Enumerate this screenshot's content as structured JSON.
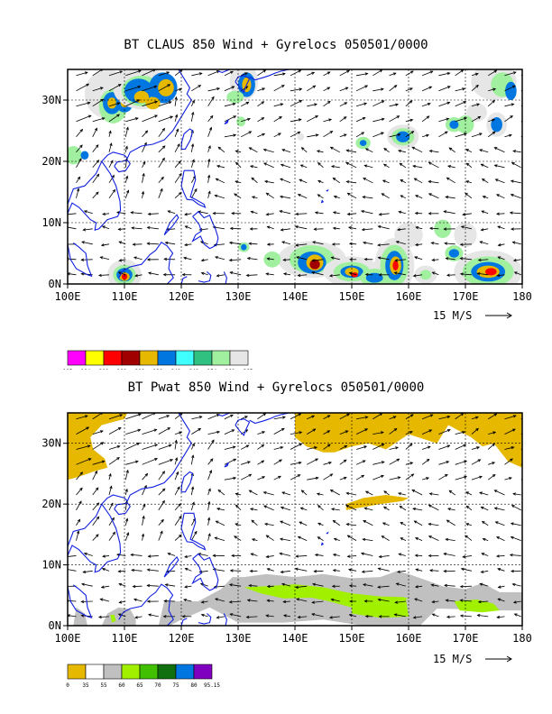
{
  "panels": [
    {
      "id": "claus",
      "title": "BT CLAUS 850 Wind + Gyrelocs 050501/0000",
      "x_ticks": [
        "100E",
        "110E",
        "120E",
        "130E",
        "140E",
        "150E",
        "160E",
        "170E",
        "180"
      ],
      "y_ticks": [
        "0N",
        "10N",
        "20N",
        "30N"
      ],
      "vector_ref": "15 M/S",
      "colorbar": {
        "colors": [
          "#ff00ff",
          "#ffff00",
          "#ff0000",
          "#a00000",
          "#e6b800",
          "#0077e0",
          "#40ffff",
          "#30c080",
          "#a0f0a0",
          "#e6e6e6"
        ],
        "labels": [
          "185",
          "194",
          "200",
          "208",
          "218",
          "230",
          "242",
          "248",
          "254",
          "260",
          "265"
        ]
      }
    },
    {
      "id": "pwat",
      "title": "BT Pwat 850 Wind + Gyrelocs 050501/0000",
      "x_ticks": [
        "100E",
        "110E",
        "120E",
        "130E",
        "140E",
        "150E",
        "160E",
        "170E",
        "180"
      ],
      "y_ticks": [
        "0N",
        "10N",
        "20N",
        "30N"
      ],
      "vector_ref": "15 M/S",
      "colorbar": {
        "colors": [
          "#e6b800",
          "#ffffff",
          "#c0c0c0",
          "#a0f000",
          "#40c000",
          "#107010",
          "#0077e0",
          "#8000c0"
        ],
        "labels": [
          "0",
          "35",
          "55",
          "60",
          "65",
          "70",
          "75",
          "80",
          "95.15"
        ]
      }
    }
  ],
  "colors": {
    "coast": "#1020e0",
    "frame": "#000000",
    "grid": "#000000"
  }
}
